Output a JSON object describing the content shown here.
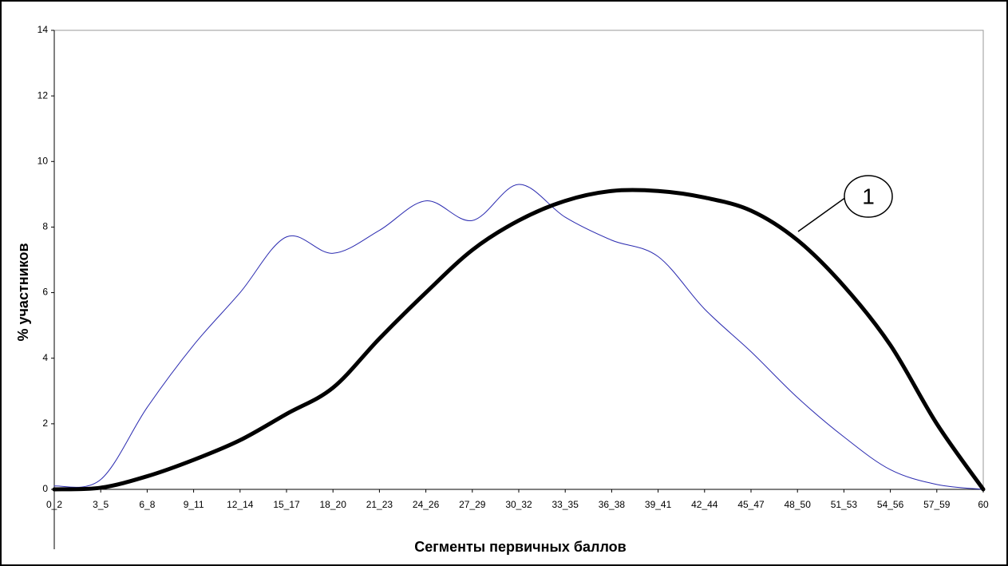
{
  "chart_data": {
    "type": "line",
    "ylabel": "% участников",
    "xlabel": "Сегменты первичных баллов",
    "categories": [
      "0_2",
      "3_5",
      "6_8",
      "9_11",
      "12_14",
      "15_17",
      "18_20",
      "21_23",
      "24_26",
      "27_29",
      "30_32",
      "33_35",
      "36_38",
      "39_41",
      "42_44",
      "45_47",
      "48_50",
      "51_53",
      "54_56",
      "57_59",
      "60"
    ],
    "series": [
      {
        "color": "#2b2bb0",
        "width": 1,
        "values": [
          0.1,
          0.3,
          2.5,
          4.4,
          6.0,
          7.7,
          7.2,
          7.9,
          8.8,
          8.2,
          9.3,
          8.3,
          7.6,
          7.1,
          5.5,
          4.2,
          2.8,
          1.6,
          0.6,
          0.15,
          0
        ]
      },
      {
        "color": "#000000",
        "width": 5,
        "values": [
          0,
          0.05,
          0.4,
          0.9,
          1.5,
          2.3,
          3.1,
          4.6,
          6.0,
          7.3,
          8.2,
          8.8,
          9.1,
          9.1,
          8.9,
          8.5,
          7.6,
          6.2,
          4.4,
          2.0,
          0
        ]
      }
    ],
    "ylim": [
      0,
      14
    ],
    "yticks": [
      0,
      2,
      4,
      6,
      8,
      10,
      12,
      14
    ],
    "annotation": "1"
  }
}
